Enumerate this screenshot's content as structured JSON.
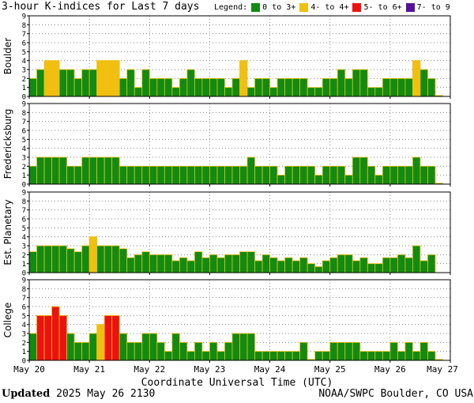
{
  "title": "3-hour K-indices for Last 7 days",
  "legend": {
    "label": "Legend:",
    "items": [
      {
        "label": "0 to 3+",
        "color": "#118b11"
      },
      {
        "label": "4- to 4+",
        "color": "#f0bf10"
      },
      {
        "label": "5- to 6+",
        "color": "#ee1111"
      },
      {
        "label": "7- to 9",
        "color": "#55119a"
      }
    ]
  },
  "footer": {
    "updated_label": "Updated",
    "updated_time": "2025 May 26 2130",
    "source": "NOAA/SWPC Boulder, CO USA"
  },
  "chart_data": {
    "type": "bar",
    "xlabel": "Coordinate Universal Time (UTC)",
    "x_ticks": [
      "May 20",
      "May 21",
      "May 22",
      "May 23",
      "May 24",
      "May 25",
      "May 26",
      "May 27"
    ],
    "ylim": [
      0,
      9
    ],
    "y_ticks": [
      "0",
      "1",
      "2",
      "3",
      "4",
      "5",
      "6",
      "7",
      "8",
      "9"
    ],
    "grid": true,
    "intervals_per_day": 8,
    "series": [
      {
        "name": "Boulder",
        "values": [
          2,
          3,
          4,
          4,
          3,
          3,
          2,
          3,
          3,
          4,
          4,
          4,
          2,
          3,
          1,
          3,
          2,
          2,
          2,
          1,
          2,
          3,
          2,
          2,
          2,
          2,
          1,
          2,
          4,
          1,
          2,
          2,
          1,
          2,
          2,
          2,
          2,
          1,
          1,
          2,
          2,
          3,
          2,
          3,
          3,
          1,
          1,
          2,
          2,
          2,
          2,
          4,
          3,
          2,
          0.1
        ]
      },
      {
        "name": "Fredericksburg",
        "values": [
          2,
          3,
          3,
          3,
          3,
          2,
          2,
          3,
          3,
          3,
          3,
          3,
          2,
          2,
          2,
          2,
          2,
          2,
          2,
          2,
          2,
          2,
          2,
          2,
          2,
          2,
          2,
          2,
          2,
          3,
          2,
          2,
          2,
          1,
          2,
          2,
          2,
          2,
          1,
          2,
          2,
          2,
          1,
          3,
          3,
          2,
          1,
          2,
          2,
          2,
          2,
          3,
          2,
          2,
          0.1
        ]
      },
      {
        "name": "Est. Planetary",
        "values": [
          2.33,
          3,
          3,
          3,
          3,
          2.67,
          2.33,
          3,
          4,
          3,
          3,
          3,
          2.67,
          1.67,
          2,
          2.33,
          2,
          2,
          2,
          1.33,
          1.67,
          1.33,
          2.33,
          1.67,
          2,
          1.67,
          2,
          2,
          2.33,
          2.33,
          1.33,
          2,
          1.67,
          1.33,
          1.67,
          1.33,
          1.67,
          1,
          0.67,
          1.33,
          1.67,
          2,
          2,
          1.33,
          1.67,
          1,
          1,
          1.67,
          1.67,
          2,
          1.67,
          3,
          1.33,
          2,
          null
        ]
      },
      {
        "name": "College",
        "values": [
          3,
          5,
          5,
          6,
          5,
          3,
          2,
          2,
          3,
          4,
          5,
          5,
          3,
          2,
          2,
          3,
          3,
          2,
          1,
          3,
          2,
          1,
          2,
          1,
          2,
          1,
          2,
          3,
          3,
          3,
          1,
          1,
          1,
          1,
          1,
          1,
          2,
          0.1,
          1,
          1,
          2,
          2,
          2,
          2,
          1,
          1,
          1,
          1,
          2,
          1,
          2,
          1,
          2,
          1,
          0.1
        ]
      }
    ]
  }
}
